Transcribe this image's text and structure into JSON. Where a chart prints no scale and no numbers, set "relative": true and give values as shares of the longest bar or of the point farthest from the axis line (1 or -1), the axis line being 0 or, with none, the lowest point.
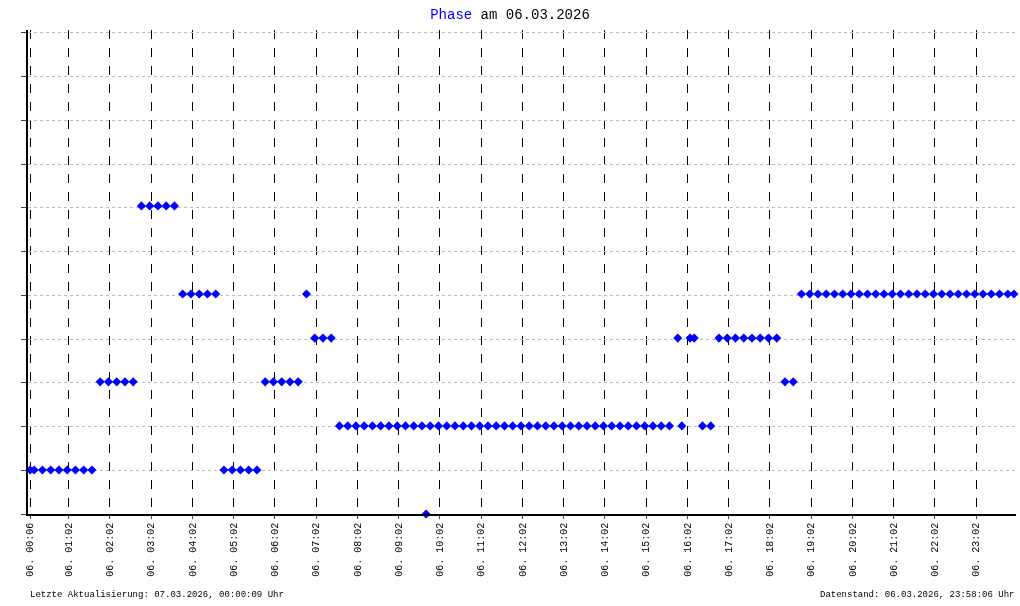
{
  "chart_data": {
    "type": "scatter",
    "title": "am 06.03.2026",
    "relative": true,
    "marker": "diamond",
    "grid": true,
    "legend": false,
    "xlim": [
      "2026-03-06T00:03",
      "2026-03-07T00:00"
    ],
    "xticks": [
      {
        "value": "2026-03-06T00:06",
        "label": "06. 00:06"
      },
      {
        "value": "2026-03-06T01:02",
        "label": "06. 01:02"
      },
      {
        "value": "2026-03-06T02:02",
        "label": "06. 02:02"
      },
      {
        "value": "2026-03-06T03:02",
        "label": "06. 03:02"
      },
      {
        "value": "2026-03-06T04:02",
        "label": "06. 04:02"
      },
      {
        "value": "2026-03-06T05:02",
        "label": "06. 05:02"
      },
      {
        "value": "2026-03-06T06:02",
        "label": "06. 06:02"
      },
      {
        "value": "2026-03-06T07:02",
        "label": "06. 07:02"
      },
      {
        "value": "2026-03-06T08:02",
        "label": "06. 08:02"
      },
      {
        "value": "2026-03-06T09:02",
        "label": "06. 09:02"
      },
      {
        "value": "2026-03-06T10:02",
        "label": "06. 10:02"
      },
      {
        "value": "2026-03-06T11:02",
        "label": "06. 11:02"
      },
      {
        "value": "2026-03-06T12:02",
        "label": "06. 12:02"
      },
      {
        "value": "2026-03-06T13:02",
        "label": "06. 13:02"
      },
      {
        "value": "2026-03-06T14:02",
        "label": "06. 14:02"
      },
      {
        "value": "2026-03-06T15:02",
        "label": "06. 15:02"
      },
      {
        "value": "2026-03-06T16:02",
        "label": "06. 16:02"
      },
      {
        "value": "2026-03-06T17:02",
        "label": "06. 17:02"
      },
      {
        "value": "2026-03-06T18:02",
        "label": "06. 18:02"
      },
      {
        "value": "2026-03-06T19:02",
        "label": "06. 19:02"
      },
      {
        "value": "2026-03-06T20:02",
        "label": "06. 20:02"
      },
      {
        "value": "2026-03-06T21:02",
        "label": "06. 21:02"
      },
      {
        "value": "2026-03-06T22:02",
        "label": "06. 22:02"
      },
      {
        "value": "2026-03-06T23:02",
        "label": "06. 23:02"
      }
    ],
    "annotations": [
      "Letzte Aktualisierung: 07.03.2026, 00:00:09 Uhr",
      "Datenstand: 06.03.2026, 23:58:06 Uhr"
    ],
    "series": [
      {
        "name": "Phase",
        "color": "#0000ff",
        "x": [
          "2026-03-06T00:06",
          "2026-03-06T00:12",
          "2026-03-06T00:24",
          "2026-03-06T00:36",
          "2026-03-06T00:48",
          "2026-03-06T01:00",
          "2026-03-06T01:12",
          "2026-03-06T01:24",
          "2026-03-06T01:36",
          "2026-03-06T01:48",
          "2026-03-06T02:00",
          "2026-03-06T02:12",
          "2026-03-06T02:24",
          "2026-03-06T02:36",
          "2026-03-06T02:48",
          "2026-03-06T03:00",
          "2026-03-06T03:12",
          "2026-03-06T03:24",
          "2026-03-06T03:36",
          "2026-03-06T03:48",
          "2026-03-06T04:00",
          "2026-03-06T04:12",
          "2026-03-06T04:24",
          "2026-03-06T04:36",
          "2026-03-06T04:48",
          "2026-03-06T05:00",
          "2026-03-06T05:12",
          "2026-03-06T05:24",
          "2026-03-06T05:36",
          "2026-03-06T05:48",
          "2026-03-06T06:00",
          "2026-03-06T06:12",
          "2026-03-06T06:24",
          "2026-03-06T06:36",
          "2026-03-06T06:48",
          "2026-03-06T07:00",
          "2026-03-06T07:12",
          "2026-03-06T07:24",
          "2026-03-06T07:36",
          "2026-03-06T07:48",
          "2026-03-06T08:00",
          "2026-03-06T08:12",
          "2026-03-06T08:24",
          "2026-03-06T08:36",
          "2026-03-06T08:48",
          "2026-03-06T09:00",
          "2026-03-06T09:12",
          "2026-03-06T09:24",
          "2026-03-06T09:36",
          "2026-03-06T09:42",
          "2026-03-06T09:48",
          "2026-03-06T10:00",
          "2026-03-06T10:12",
          "2026-03-06T10:24",
          "2026-03-06T10:36",
          "2026-03-06T10:48",
          "2026-03-06T11:00",
          "2026-03-06T11:12",
          "2026-03-06T11:24",
          "2026-03-06T11:36",
          "2026-03-06T11:48",
          "2026-03-06T12:00",
          "2026-03-06T12:12",
          "2026-03-06T12:24",
          "2026-03-06T12:36",
          "2026-03-06T12:48",
          "2026-03-06T13:00",
          "2026-03-06T13:12",
          "2026-03-06T13:24",
          "2026-03-06T13:36",
          "2026-03-06T13:48",
          "2026-03-06T14:00",
          "2026-03-06T14:12",
          "2026-03-06T14:24",
          "2026-03-06T14:36",
          "2026-03-06T14:48",
          "2026-03-06T15:00",
          "2026-03-06T15:12",
          "2026-03-06T15:24",
          "2026-03-06T15:36",
          "2026-03-06T15:48",
          "2026-03-06T15:54",
          "2026-03-06T16:06",
          "2026-03-06T16:12",
          "2026-03-06T16:24",
          "2026-03-06T16:36",
          "2026-03-06T16:48",
          "2026-03-06T17:00",
          "2026-03-06T17:12",
          "2026-03-06T17:24",
          "2026-03-06T17:36",
          "2026-03-06T17:48",
          "2026-03-06T18:00",
          "2026-03-06T18:12",
          "2026-03-06T18:24",
          "2026-03-06T18:36",
          "2026-03-06T18:48",
          "2026-03-06T19:00",
          "2026-03-06T19:12",
          "2026-03-06T19:24",
          "2026-03-06T19:36",
          "2026-03-06T19:48",
          "2026-03-06T20:00",
          "2026-03-06T20:12",
          "2026-03-06T20:24",
          "2026-03-06T20:36",
          "2026-03-06T20:48",
          "2026-03-06T21:00",
          "2026-03-06T21:12",
          "2026-03-06T21:24",
          "2026-03-06T21:36",
          "2026-03-06T21:48",
          "2026-03-06T22:00",
          "2026-03-06T22:12",
          "2026-03-06T22:24",
          "2026-03-06T22:36",
          "2026-03-06T22:48",
          "2026-03-06T23:00",
          "2026-03-06T23:12",
          "2026-03-06T23:24",
          "2026-03-06T23:36",
          "2026-03-06T23:48",
          "2026-03-06T23:57"
        ],
        "values": [
          0.143,
          0.143,
          0.143,
          0.143,
          0.143,
          0.143,
          0.143,
          0.143,
          0.143,
          0.429,
          0.429,
          0.429,
          0.429,
          0.429,
          1,
          1,
          1,
          1,
          1,
          0.714,
          0.714,
          0.714,
          0.714,
          0.714,
          0.143,
          0.143,
          0.143,
          0.143,
          0.143,
          0.429,
          0.429,
          0.429,
          0.429,
          0.429,
          0.714,
          0.571,
          0.571,
          0.571,
          0.286,
          0.286,
          0.286,
          0.286,
          0.286,
          0.286,
          0.286,
          0.286,
          0.286,
          0.286,
          0.286,
          0,
          0.286,
          0.286,
          0.286,
          0.286,
          0.286,
          0.286,
          0.286,
          0.286,
          0.286,
          0.286,
          0.286,
          0.286,
          0.286,
          0.286,
          0.286,
          0.286,
          0.286,
          0.286,
          0.286,
          0.286,
          0.286,
          0.286,
          0.286,
          0.286,
          0.286,
          0.286,
          0.286,
          0.286,
          0.286,
          0.286,
          0.571,
          0.286,
          0.571,
          0.571,
          0.286,
          0.286,
          0.571,
          0.571,
          0.571,
          0.571,
          0.571,
          0.571,
          0.571,
          0.571,
          0.429,
          0.429,
          0.714,
          0.714,
          0.714,
          0.714,
          0.714,
          0.714,
          0.714,
          0.714,
          0.714,
          0.714,
          0.714,
          0.714,
          0.714,
          0.714,
          0.714,
          0.714,
          0.714,
          0.714,
          0.714,
          0.714,
          0.714,
          0.714,
          0.714,
          0.714,
          0.714,
          0.714,
          0.714
        ]
      }
    ]
  }
}
